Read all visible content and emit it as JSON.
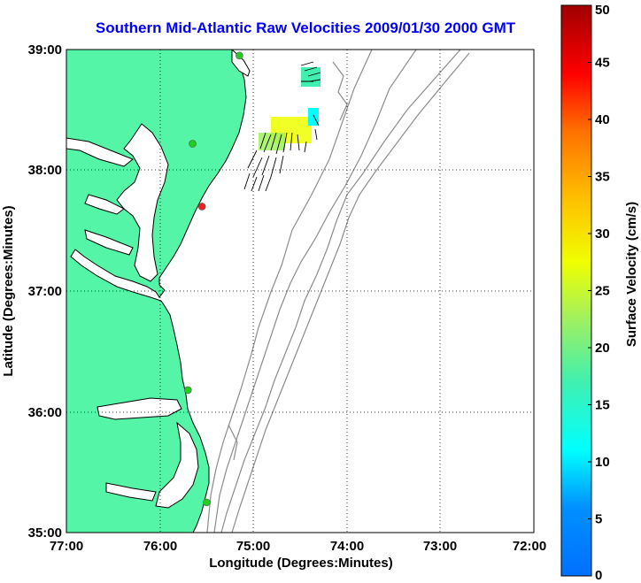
{
  "title": "Southern Mid-Atlantic Raw Velocities 2009/01/30 2000 GMT",
  "x_axis": {
    "label": "Longitude (Degrees:Minutes)",
    "ticks": [
      "77:00",
      "76:00",
      "75:00",
      "74:00",
      "73:00",
      "72:00"
    ]
  },
  "y_axis": {
    "label": "Latitude (Degrees:Minutes)",
    "ticks": [
      "39:00",
      "38:00",
      "37:00",
      "36:00",
      "35:00"
    ]
  },
  "colorbar": {
    "label": "Surface Velocity (cm/s)",
    "ticks": [
      "50",
      "45",
      "40",
      "35",
      "30",
      "25",
      "20",
      "15",
      "10",
      "5",
      "0"
    ],
    "min": 0,
    "max": 50
  },
  "colors": {
    "land": "#55f5a8",
    "coastline": "#000000",
    "bathymetry": "#8c8c8c",
    "title": "#0000ff",
    "grid": "#000000"
  },
  "map_extent": {
    "lon_west": -77,
    "lon_east": -72,
    "lat_south": 35,
    "lat_north": 39
  },
  "stations": [
    {
      "name": "green",
      "lon": -75.15,
      "lat": 38.95,
      "color": "#22cc22"
    },
    {
      "name": "green",
      "lon": -75.65,
      "lat": 38.22,
      "color": "#22cc22"
    },
    {
      "name": "red",
      "lon": -75.55,
      "lat": 37.7,
      "color": "#ee2222"
    },
    {
      "name": "green",
      "lon": -75.7,
      "lat": 36.18,
      "color": "#22cc22"
    },
    {
      "name": "green",
      "lon": -75.5,
      "lat": 35.25,
      "color": "#22cc22"
    }
  ]
}
